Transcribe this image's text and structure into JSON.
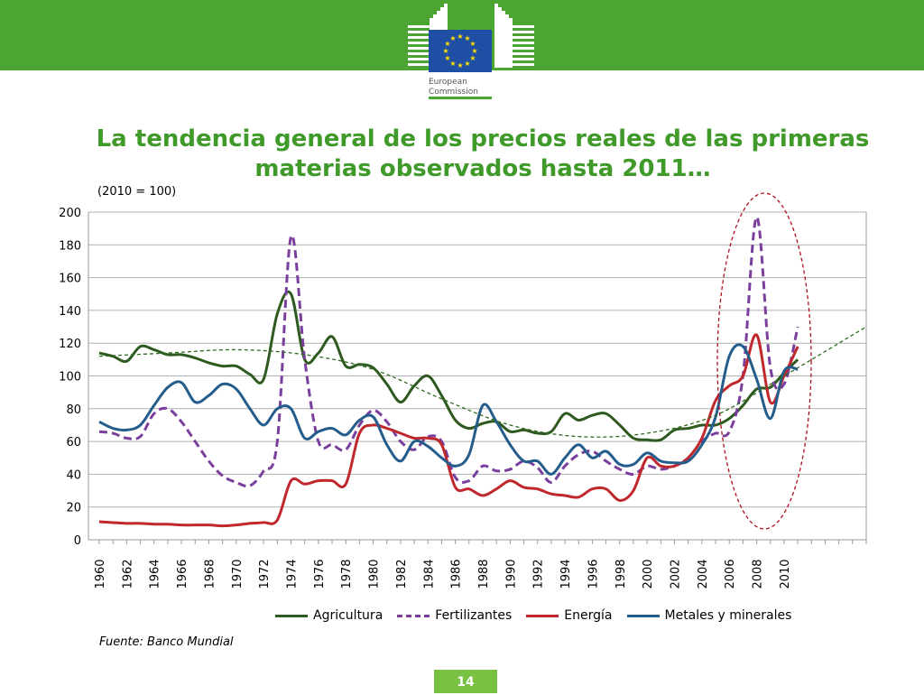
{
  "header": {
    "brand_line1": "European",
    "brand_line2": "Commission",
    "band_color": "#4aa533"
  },
  "slide": {
    "title_line1": "La tendencia general de los precios reales de las primeras",
    "title_line2": "materias observados hasta 2011…",
    "index_note": "(2010 = 100)",
    "source": "Fuente: Banco Mundial",
    "page_number": "14"
  },
  "chart_data": {
    "type": "line",
    "title": "",
    "xlabel": "",
    "ylabel": "(2010 = 100)",
    "ylim": [
      0,
      200
    ],
    "y_ticks": [
      0,
      20,
      40,
      60,
      80,
      100,
      120,
      140,
      160,
      180,
      200
    ],
    "x_range": [
      1960,
      2016
    ],
    "x_tick_labels": [
      "1960",
      "1962",
      "1964",
      "1966",
      "1968",
      "1970",
      "1972",
      "1974",
      "1976",
      "1978",
      "1980",
      "1982",
      "1984",
      "1986",
      "1988",
      "1990",
      "1992",
      "1994",
      "1996",
      "1998",
      "2000",
      "2002",
      "2004",
      "2006",
      "2008",
      "2010"
    ],
    "grid": "horizontal",
    "legend_position": "bottom",
    "series": [
      {
        "name": "Agricultura",
        "color": "#2e5a1f",
        "style": "solid",
        "x": [
          1960,
          1961,
          1962,
          1963,
          1964,
          1965,
          1966,
          1967,
          1968,
          1969,
          1970,
          1971,
          1972,
          1973,
          1974,
          1975,
          1976,
          1977,
          1978,
          1979,
          1980,
          1981,
          1982,
          1983,
          1984,
          1985,
          1986,
          1987,
          1988,
          1989,
          1990,
          1991,
          1992,
          1993,
          1994,
          1995,
          1996,
          1997,
          1998,
          1999,
          2000,
          2001,
          2002,
          2003,
          2004,
          2005,
          2006,
          2007,
          2008,
          2009,
          2010,
          2011
        ],
        "values": [
          114,
          112,
          109,
          118,
          116,
          113,
          113,
          111,
          108,
          106,
          106,
          101,
          98,
          138,
          150,
          110,
          114,
          124,
          106,
          107,
          105,
          95,
          84,
          94,
          100,
          88,
          73,
          68,
          71,
          72,
          66,
          67,
          65,
          66,
          77,
          73,
          76,
          77,
          70,
          62,
          61,
          61,
          67,
          68,
          70,
          70,
          74,
          82,
          92,
          93,
          102,
          110
        ]
      },
      {
        "name": "Fertilizantes",
        "color": "#7a3f9d",
        "style": "dashed",
        "x": [
          1960,
          1961,
          1962,
          1963,
          1964,
          1965,
          1966,
          1967,
          1968,
          1969,
          1970,
          1971,
          1972,
          1973,
          1974,
          1975,
          1976,
          1977,
          1978,
          1979,
          1980,
          1981,
          1982,
          1983,
          1984,
          1985,
          1986,
          1987,
          1988,
          1989,
          1990,
          1991,
          1992,
          1993,
          1994,
          1995,
          1996,
          1997,
          1998,
          1999,
          2000,
          2001,
          2002,
          2003,
          2004,
          2005,
          2006,
          2007,
          2008,
          2009,
          2010,
          2011
        ],
        "values": [
          66,
          65,
          62,
          63,
          77,
          80,
          72,
          60,
          48,
          39,
          35,
          33,
          42,
          60,
          185,
          110,
          60,
          58,
          55,
          70,
          79,
          72,
          60,
          55,
          63,
          60,
          38,
          36,
          45,
          42,
          43,
          48,
          44,
          35,
          45,
          52,
          54,
          48,
          43,
          40,
          45,
          43,
          45,
          50,
          60,
          65,
          66,
          100,
          197,
          105,
          95,
          130
        ]
      },
      {
        "name": "Energía",
        "color": "#c0282d",
        "style": "solid",
        "x": [
          1960,
          1961,
          1962,
          1963,
          1964,
          1965,
          1966,
          1967,
          1968,
          1969,
          1970,
          1971,
          1972,
          1973,
          1974,
          1975,
          1976,
          1977,
          1978,
          1979,
          1980,
          1981,
          1982,
          1983,
          1984,
          1985,
          1986,
          1987,
          1988,
          1989,
          1990,
          1991,
          1992,
          1993,
          1994,
          1995,
          1996,
          1997,
          1998,
          1999,
          2000,
          2001,
          2002,
          2003,
          2004,
          2005,
          2006,
          2007,
          2008,
          2009,
          2010,
          2011
        ],
        "values": [
          11,
          10.5,
          10,
          10,
          9.5,
          9.5,
          9,
          9,
          9,
          8.5,
          9,
          10,
          10.5,
          12,
          36,
          34,
          36,
          36,
          34,
          65,
          70,
          68,
          65,
          62,
          62,
          58,
          32,
          31,
          27,
          31,
          36,
          32,
          31,
          28,
          27,
          26,
          31,
          31,
          24,
          30,
          50,
          45,
          45,
          50,
          62,
          85,
          94,
          100,
          125,
          84,
          100,
          118
        ]
      },
      {
        "name": "Metales y minerales",
        "color": "#245d8c",
        "style": "solid",
        "x": [
          1960,
          1961,
          1962,
          1963,
          1964,
          1965,
          1966,
          1967,
          1968,
          1969,
          1970,
          1971,
          1972,
          1973,
          1974,
          1975,
          1976,
          1977,
          1978,
          1979,
          1980,
          1981,
          1982,
          1983,
          1984,
          1985,
          1986,
          1987,
          1988,
          1989,
          1990,
          1991,
          1992,
          1993,
          1994,
          1995,
          1996,
          1997,
          1998,
          1999,
          2000,
          2001,
          2002,
          2003,
          2004,
          2005,
          2006,
          2007,
          2008,
          2009,
          2010,
          2011
        ],
        "values": [
          72,
          68,
          67,
          70,
          82,
          93,
          96,
          84,
          88,
          95,
          92,
          80,
          70,
          80,
          80,
          62,
          66,
          68,
          64,
          73,
          75,
          58,
          48,
          60,
          57,
          50,
          45,
          52,
          82,
          72,
          58,
          48,
          48,
          40,
          50,
          58,
          50,
          54,
          46,
          46,
          53,
          48,
          47,
          48,
          58,
          75,
          112,
          118,
          98,
          74,
          103,
          104
        ]
      },
      {
        "name": "Trend",
        "color": "#2e6b1f",
        "style": "dotted-trend",
        "in_legend": false,
        "x": [
          1960,
          1965,
          1970,
          1975,
          1980,
          1985,
          1990,
          1995,
          2000,
          2005,
          2010,
          2016
        ],
        "values": [
          112,
          114,
          116,
          113,
          104,
          86,
          70,
          63,
          65,
          76,
          100,
          130
        ]
      }
    ],
    "annotation": "red dashed ellipse highlighting 2006-2011"
  }
}
